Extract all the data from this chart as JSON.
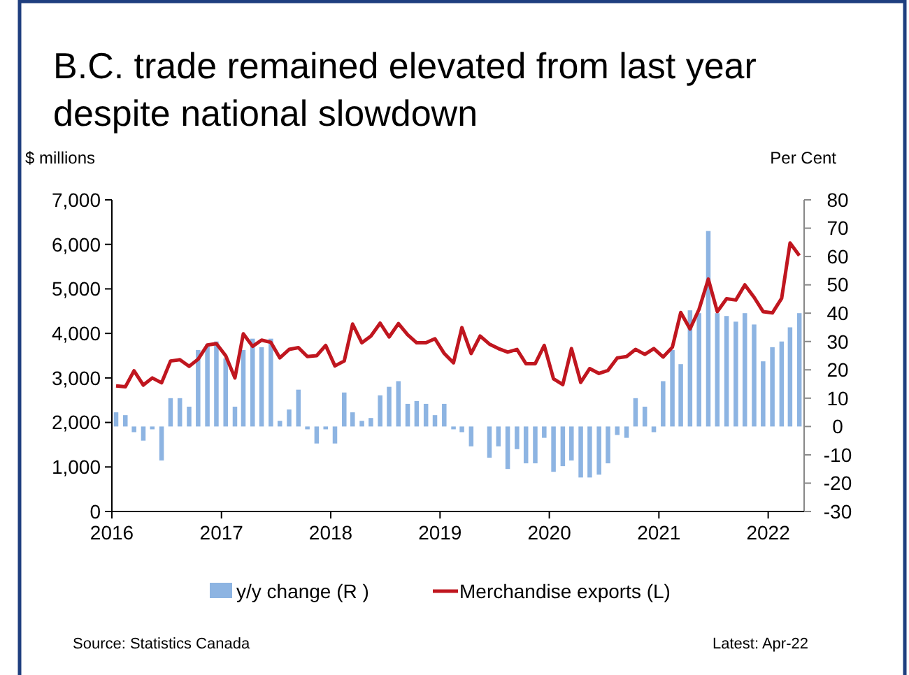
{
  "chart_data": {
    "type": "bar",
    "title": "B.C. trade remained elevated from last year despite national slowdown",
    "ylabel": "$ millions",
    "y2label": "Per Cent",
    "x": [
      "2016-01-15",
      "2016-02-15",
      "2016-03-15",
      "2016-04-15",
      "2016-05-15",
      "2016-06-15",
      "2016-07-15",
      "2016-08-15",
      "2016-09-15",
      "2016-10-15",
      "2016-11-15",
      "2016-12-15",
      "2017-01-15",
      "2017-02-15",
      "2017-03-15",
      "2017-04-15",
      "2017-05-15",
      "2017-06-15",
      "2017-07-15",
      "2017-08-15",
      "2017-09-15",
      "2017-10-15",
      "2017-11-15",
      "2017-12-15",
      "2018-01-15",
      "2018-02-15",
      "2018-03-15",
      "2018-04-15",
      "2018-05-15",
      "2018-06-15",
      "2018-07-15",
      "2018-08-15",
      "2018-09-15",
      "2018-10-15",
      "2018-11-15",
      "2018-12-15",
      "2019-01-15",
      "2019-02-15",
      "2019-03-15",
      "2019-04-15",
      "2019-05-15",
      "2019-06-15",
      "2019-07-15",
      "2019-08-15",
      "2019-09-15",
      "2019-10-15",
      "2019-11-15",
      "2019-12-15",
      "2020-01-15",
      "2020-02-15",
      "2020-03-15",
      "2020-04-15",
      "2020-05-15",
      "2020-06-15",
      "2020-07-15",
      "2020-08-15",
      "2020-09-15",
      "2020-10-15",
      "2020-11-15",
      "2020-12-15",
      "2021-01-15",
      "2021-02-15",
      "2021-03-15",
      "2021-04-15",
      "2021-05-15",
      "2021-06-15",
      "2021-07-15",
      "2021-08-15",
      "2021-09-15",
      "2021-10-15",
      "2021-11-15",
      "2021-12-15",
      "2022-01-15",
      "2022-02-15",
      "2022-03-15",
      "2022-04-15"
    ],
    "series": [
      {
        "name": "y/y change (R )",
        "axis": "y2",
        "color": "#8db4e2",
        "values": [
          5,
          4,
          -2,
          -5,
          -1,
          -12,
          10,
          10,
          7,
          27,
          29,
          30,
          24,
          7,
          27,
          31,
          28,
          31,
          2,
          6,
          13,
          -1,
          -6,
          -1,
          -6,
          12,
          5,
          2,
          3,
          11,
          14,
          16,
          8,
          9,
          8,
          4,
          8,
          -1,
          -2,
          -7,
          0,
          -11,
          -7,
          -15,
          -8,
          -13,
          -13,
          -4,
          -16,
          -14,
          -12,
          -18,
          -18,
          -17,
          -13,
          -3,
          -4,
          10,
          7,
          -2,
          16,
          27,
          22,
          41,
          40,
          69,
          40,
          39,
          37,
          40,
          36,
          23,
          28,
          30,
          35,
          40
        ]
      },
      {
        "name": "Merchandise exports (L)",
        "type": "line",
        "color": "#c0161f",
        "values": [
          2820,
          2800,
          3160,
          2840,
          3000,
          2890,
          3380,
          3410,
          3260,
          3420,
          3740,
          3770,
          3500,
          3000,
          3990,
          3710,
          3850,
          3800,
          3450,
          3640,
          3680,
          3480,
          3500,
          3730,
          3270,
          3380,
          4210,
          3790,
          3940,
          4230,
          3920,
          4220,
          3970,
          3790,
          3790,
          3880,
          3550,
          3340,
          4130,
          3550,
          3940,
          3760,
          3660,
          3580,
          3640,
          3320,
          3320,
          3730,
          2980,
          2850,
          3660,
          2900,
          3210,
          3100,
          3170,
          3450,
          3480,
          3640,
          3530,
          3660,
          3470,
          3690,
          4470,
          4100,
          4540,
          5220,
          4490,
          4780,
          4750,
          5090,
          4810,
          4490,
          4460,
          4790,
          6030,
          5750
        ]
      }
    ],
    "xlim": [
      "2016-01-01",
      "2022-05-01"
    ],
    "xticks": [
      {
        "value": "2016-01-01",
        "label": "2016"
      },
      {
        "value": "2017-01-01",
        "label": "2017"
      },
      {
        "value": "2018-01-01",
        "label": "2018"
      },
      {
        "value": "2019-01-01",
        "label": "2019"
      },
      {
        "value": "2020-01-01",
        "label": "2020"
      },
      {
        "value": "2021-01-01",
        "label": "2021"
      },
      {
        "value": "2022-01-01",
        "label": "2022"
      }
    ],
    "ylim": [
      0,
      7000
    ],
    "yticks": [
      0,
      {
        "value": 1000,
        "label": "1,000"
      },
      {
        "value": 2000,
        "label": "2,000"
      },
      {
        "value": 3000,
        "label": "3,000"
      },
      {
        "value": 4000,
        "label": "4,000"
      },
      {
        "value": 5000,
        "label": "5,000"
      },
      {
        "value": 6000,
        "label": "6,000"
      },
      {
        "value": 7000,
        "label": "7,000"
      }
    ],
    "y2lim": [
      -30,
      80
    ],
    "y2ticks": [
      -30,
      -20,
      -10,
      0,
      10,
      20,
      30,
      40,
      50,
      60,
      70,
      80
    ],
    "legend": "bottom",
    "grid": false,
    "annotations": [
      "Source: Statistics Canada",
      "Latest: Apr-22"
    ]
  }
}
